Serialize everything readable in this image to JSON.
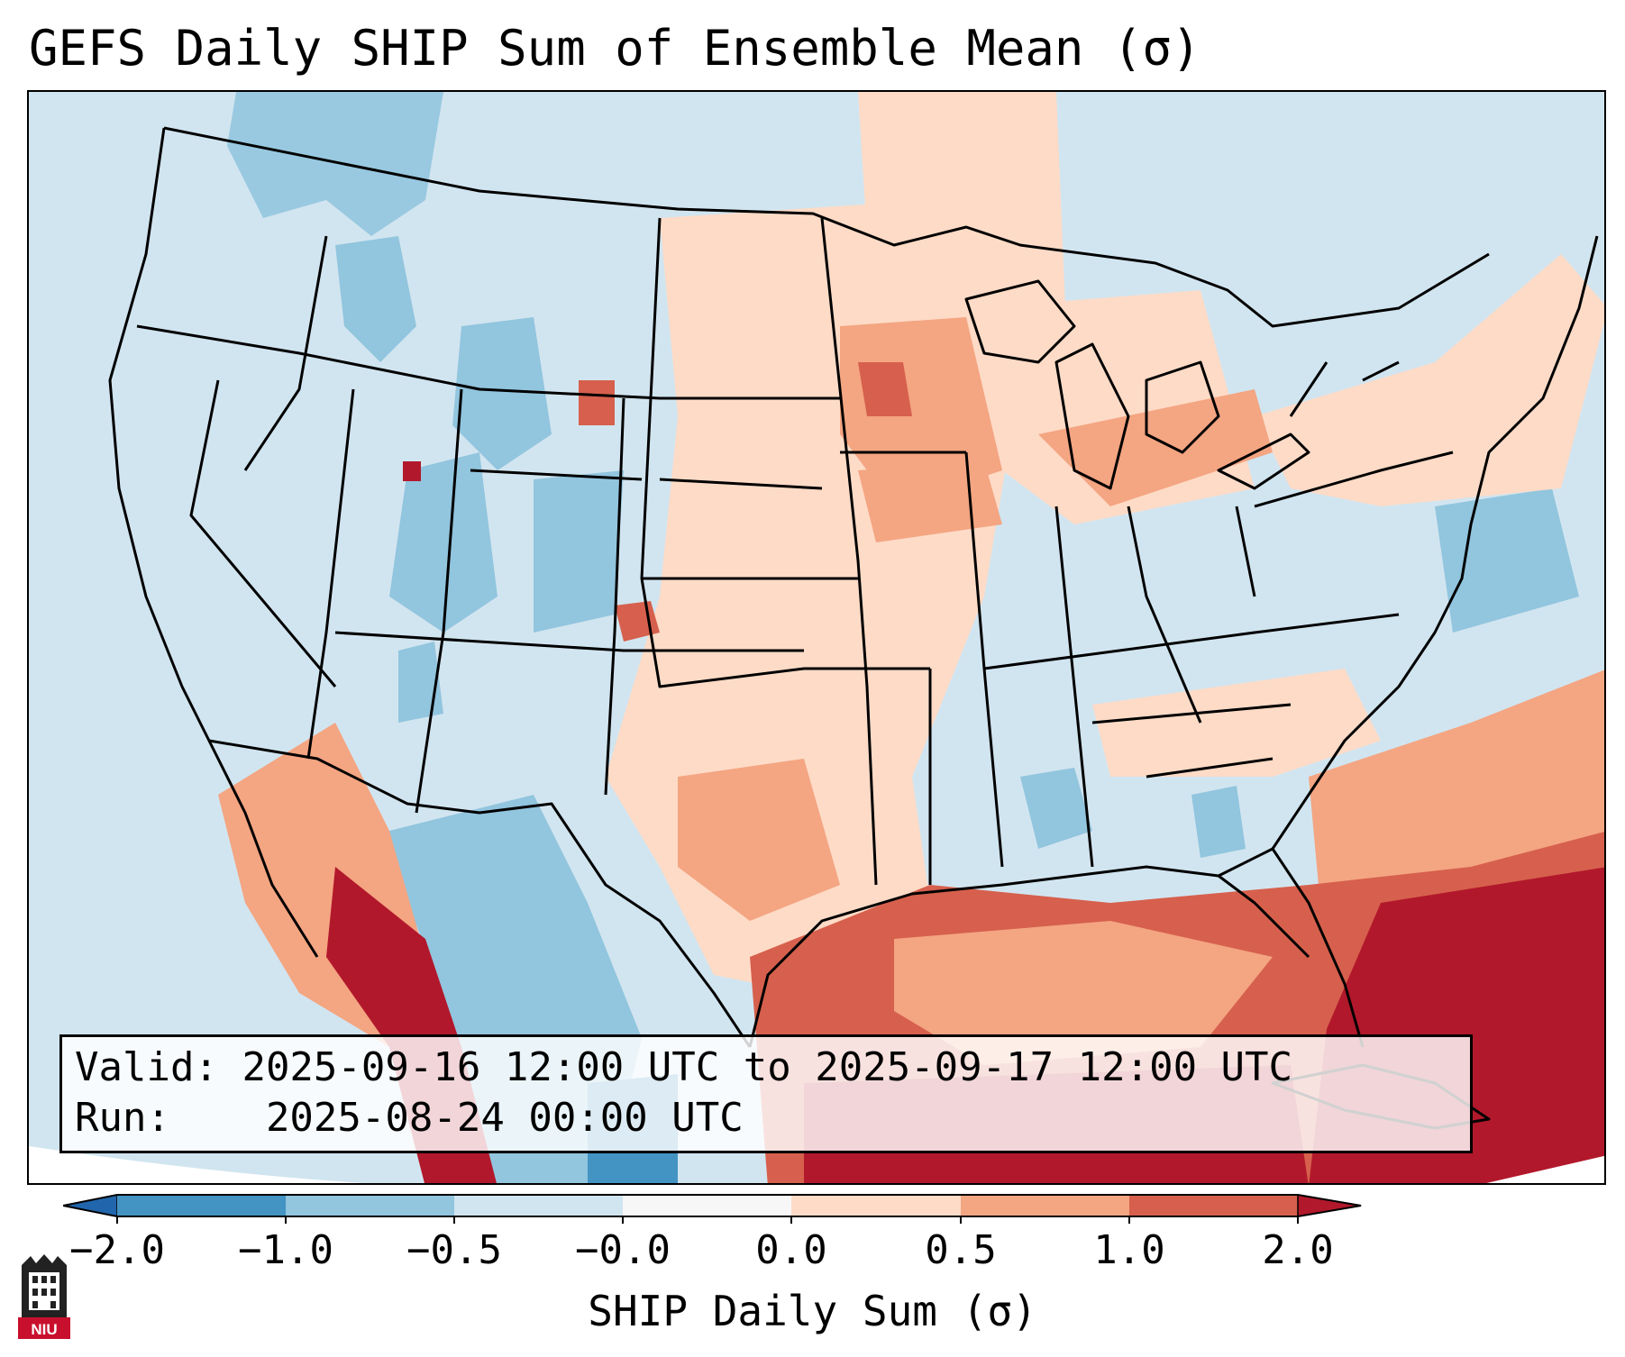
{
  "title": "GEFS Daily SHIP Sum of Ensemble Mean (σ)",
  "info": {
    "valid_label": "Valid:",
    "valid_value": "2025-09-16 12:00 UTC to 2025-09-17 12:00 UTC",
    "run_label": "Run:",
    "run_value": "2025-08-24 00:00 UTC"
  },
  "colorbar": {
    "title": "SHIP Daily Sum (σ)",
    "tick_labels": [
      "−2.0",
      "−1.0",
      "−0.5",
      "−0.0",
      "0.0",
      "0.5",
      "1.0",
      "2.0"
    ],
    "bins": [
      "<-2",
      "-2..-1",
      "-1..-0.5",
      "-0.5..-0.0",
      "-0.0..0.0",
      "0.0..0.5",
      "0.5..1.0",
      "1.0..2.0",
      ">2"
    ],
    "colors": [
      "#2166ac",
      "#4393c3",
      "#92c5de",
      "#d1e5f0",
      "#f7f7f7",
      "#fddbc7",
      "#f4a582",
      "#d6604d",
      "#b2182b"
    ]
  },
  "logo": {
    "text": "NIU",
    "color": "#c8102e"
  },
  "colors": {
    "ocean_neutral": "#d1e5f0",
    "border": "#000000"
  }
}
